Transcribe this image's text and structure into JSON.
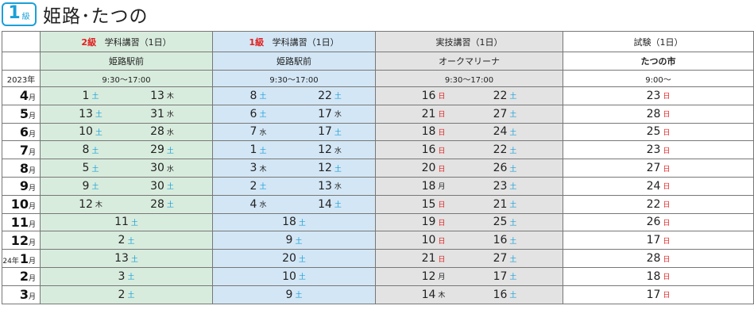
{
  "header": {
    "level_num": "1",
    "level_unit": "級",
    "title": "姫路･たつの"
  },
  "year_label": "2023年",
  "columns": [
    {
      "level": "2級",
      "name": "学科講習（1日）",
      "place": "姫路駅前",
      "time": "9:30〜17:00"
    },
    {
      "level": "1級",
      "name": "学科講習（1日）",
      "place": "姫路駅前",
      "time": "9:30〜17:00"
    },
    {
      "level": "",
      "name": "実技講習（1日）",
      "place": "オークマリーナ",
      "time": "9:30〜17:00"
    },
    {
      "level": "",
      "name": "試験（1日）",
      "place": "たつの市",
      "time": "9:00〜"
    }
  ],
  "colors": {
    "green": "#d8ecdd",
    "blue": "#d3e6f5",
    "gray": "#e3e3e3",
    "sat": "#1aa0d8",
    "sun": "#e02020"
  },
  "rows": [
    {
      "year": "",
      "month": "4",
      "unit": "月",
      "c2": [
        [
          "1",
          "土"
        ],
        [
          "13",
          "木"
        ]
      ],
      "c1": [
        [
          "8",
          "土"
        ],
        [
          "22",
          "土"
        ]
      ],
      "ct": [
        [
          "16",
          "日"
        ],
        [
          "22",
          "土"
        ]
      ],
      "ex": [
        [
          "23",
          "日"
        ]
      ]
    },
    {
      "year": "",
      "month": "5",
      "unit": "月",
      "c2": [
        [
          "13",
          "土"
        ],
        [
          "31",
          "水"
        ]
      ],
      "c1": [
        [
          "6",
          "土"
        ],
        [
          "17",
          "水"
        ]
      ],
      "ct": [
        [
          "21",
          "日"
        ],
        [
          "27",
          "土"
        ]
      ],
      "ex": [
        [
          "28",
          "日"
        ]
      ]
    },
    {
      "year": "",
      "month": "6",
      "unit": "月",
      "c2": [
        [
          "10",
          "土"
        ],
        [
          "28",
          "水"
        ]
      ],
      "c1": [
        [
          "7",
          "水"
        ],
        [
          "17",
          "土"
        ]
      ],
      "ct": [
        [
          "18",
          "日"
        ],
        [
          "24",
          "土"
        ]
      ],
      "ex": [
        [
          "25",
          "日"
        ]
      ]
    },
    {
      "year": "",
      "month": "7",
      "unit": "月",
      "c2": [
        [
          "8",
          "土"
        ],
        [
          "29",
          "土"
        ]
      ],
      "c1": [
        [
          "1",
          "土"
        ],
        [
          "12",
          "水"
        ]
      ],
      "ct": [
        [
          "16",
          "日"
        ],
        [
          "22",
          "土"
        ]
      ],
      "ex": [
        [
          "23",
          "日"
        ]
      ]
    },
    {
      "year": "",
      "month": "8",
      "unit": "月",
      "c2": [
        [
          "5",
          "土"
        ],
        [
          "30",
          "水"
        ]
      ],
      "c1": [
        [
          "3",
          "木"
        ],
        [
          "12",
          "土"
        ]
      ],
      "ct": [
        [
          "20",
          "日"
        ],
        [
          "26",
          "土"
        ]
      ],
      "ex": [
        [
          "27",
          "日"
        ]
      ]
    },
    {
      "year": "",
      "month": "9",
      "unit": "月",
      "c2": [
        [
          "9",
          "土"
        ],
        [
          "30",
          "土"
        ]
      ],
      "c1": [
        [
          "2",
          "土"
        ],
        [
          "13",
          "水"
        ]
      ],
      "ct": [
        [
          "18",
          "月"
        ],
        [
          "23",
          "土"
        ]
      ],
      "ex": [
        [
          "24",
          "日"
        ]
      ]
    },
    {
      "year": "",
      "month": "10",
      "unit": "月",
      "c2": [
        [
          "12",
          "木"
        ],
        [
          "28",
          "土"
        ]
      ],
      "c1": [
        [
          "4",
          "水"
        ],
        [
          "14",
          "土"
        ]
      ],
      "ct": [
        [
          "15",
          "日"
        ],
        [
          "21",
          "土"
        ]
      ],
      "ex": [
        [
          "22",
          "日"
        ]
      ]
    },
    {
      "year": "",
      "month": "11",
      "unit": "月",
      "c2": [
        [
          "11",
          "土"
        ]
      ],
      "c1": [
        [
          "18",
          "土"
        ]
      ],
      "ct": [
        [
          "19",
          "日"
        ],
        [
          "25",
          "土"
        ]
      ],
      "ex": [
        [
          "26",
          "日"
        ]
      ]
    },
    {
      "year": "",
      "month": "12",
      "unit": "月",
      "c2": [
        [
          "2",
          "土"
        ]
      ],
      "c1": [
        [
          "9",
          "土"
        ]
      ],
      "ct": [
        [
          "10",
          "日"
        ],
        [
          "16",
          "土"
        ]
      ],
      "ex": [
        [
          "17",
          "日"
        ]
      ]
    },
    {
      "year": "24年",
      "month": "1",
      "unit": "月",
      "c2": [
        [
          "13",
          "土"
        ]
      ],
      "c1": [
        [
          "20",
          "土"
        ]
      ],
      "ct": [
        [
          "21",
          "日"
        ],
        [
          "27",
          "土"
        ]
      ],
      "ex": [
        [
          "28",
          "日"
        ]
      ]
    },
    {
      "year": "",
      "month": "2",
      "unit": "月",
      "c2": [
        [
          "3",
          "土"
        ]
      ],
      "c1": [
        [
          "10",
          "土"
        ]
      ],
      "ct": [
        [
          "12",
          "月"
        ],
        [
          "17",
          "土"
        ]
      ],
      "ex": [
        [
          "18",
          "日"
        ]
      ]
    },
    {
      "year": "",
      "month": "3",
      "unit": "月",
      "c2": [
        [
          "2",
          "土"
        ]
      ],
      "c1": [
        [
          "9",
          "土"
        ]
      ],
      "ct": [
        [
          "14",
          "木"
        ],
        [
          "16",
          "土"
        ]
      ],
      "ex": [
        [
          "17",
          "日"
        ]
      ]
    }
  ]
}
